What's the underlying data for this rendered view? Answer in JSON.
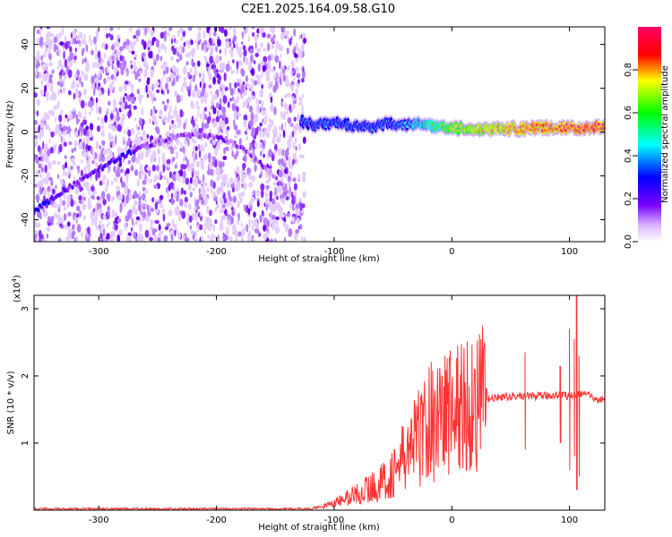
{
  "title": "C2E1.2025.164.09.58.G10",
  "chart_data": [
    {
      "type": "heatmap",
      "xlabel": "Height of straight line (km)",
      "ylabel": "Frequency (Hz)",
      "xlim": [
        -355,
        130
      ],
      "ylim": [
        -50,
        48
      ],
      "xticks": [
        -300,
        -200,
        -100,
        0,
        100
      ],
      "yticks": [
        -40,
        -20,
        0,
        20,
        40
      ],
      "colorbar": {
        "label": "Normalized spectral amplitude",
        "range": [
          0,
          1
        ],
        "ticks": [
          0.0,
          0.2,
          0.4,
          0.6,
          0.8
        ],
        "colormap": [
          "#ffffff",
          "#7a00ff",
          "#0000ff",
          "#00ffff",
          "#00ff00",
          "#ffff00",
          "#ff0000",
          "#ff00ff"
        ]
      },
      "noise_region": {
        "x": [
          -355,
          -125
        ],
        "amplitude": 0.15
      },
      "tracks": [
        {
          "x": [
            -355,
            -330,
            -300,
            -280,
            -260,
            -240,
            -220,
            -200,
            -185,
            -170,
            -155,
            -140
          ],
          "y": [
            -36,
            -27,
            -17,
            -11,
            -6,
            -3,
            -1,
            -2,
            -5,
            -10,
            -18,
            -28
          ],
          "amplitude": [
            0.28,
            0.2,
            0.2,
            0.25,
            0.18,
            0.15,
            0.15,
            0.17,
            0.15,
            0.15,
            0.15,
            0.14
          ]
        },
        {
          "x": [
            -128,
            -115,
            -100,
            -85,
            -70,
            -55,
            -40,
            -25,
            -10,
            0,
            20,
            40,
            60,
            80,
            100,
            130
          ],
          "y": [
            5,
            3,
            4,
            3,
            2,
            4,
            3,
            4,
            2,
            2,
            1.5,
            1.5,
            1.5,
            2,
            2,
            2
          ],
          "amplitude": [
            0.3,
            0.35,
            0.35,
            0.35,
            0.35,
            0.32,
            0.4,
            0.5,
            0.6,
            0.7,
            0.75,
            0.8,
            0.85,
            0.85,
            0.88,
            0.9
          ]
        }
      ]
    },
    {
      "type": "line",
      "xlabel": "Height of straight line (km)",
      "ylabel": "SNR (10 * v/v)",
      "y_multiplier": "(x10",
      "y_exponent": "4",
      "xlim": [
        -355,
        130
      ],
      "ylim": [
        0,
        3.2
      ],
      "xticks": [
        -300,
        -200,
        -100,
        0,
        100
      ],
      "yticks": [
        1,
        2,
        3
      ],
      "series": [
        {
          "color": "#ff3333",
          "x": [
            -355,
            -300,
            -200,
            -120,
            -100,
            -80,
            -60,
            -50,
            -40,
            -30,
            -20,
            -10,
            0,
            10,
            20,
            30,
            40,
            60,
            80,
            90,
            100,
            105,
            110,
            115,
            120,
            130
          ],
          "y": [
            0.02,
            0.02,
            0.02,
            0.02,
            0.1,
            0.25,
            0.4,
            0.55,
            0.8,
            1.05,
            1.3,
            1.45,
            1.5,
            1.55,
            1.6,
            1.65,
            1.68,
            1.7,
            1.7,
            1.72,
            1.7,
            1.72,
            1.75,
            1.72,
            1.66,
            1.65
          ],
          "spikes": [
            {
              "x": 62,
              "lo": 0.9,
              "hi": 2.35
            },
            {
              "x": 92,
              "lo": 1.0,
              "hi": 2.15
            },
            {
              "x": 100,
              "lo": 0.6,
              "hi": 2.7
            },
            {
              "x": 104,
              "lo": 0.8,
              "hi": 2.55
            },
            {
              "x": 106,
              "lo": 0.3,
              "hi": 3.2
            },
            {
              "x": 108,
              "lo": 0.5,
              "hi": 2.3
            }
          ]
        }
      ]
    }
  ]
}
